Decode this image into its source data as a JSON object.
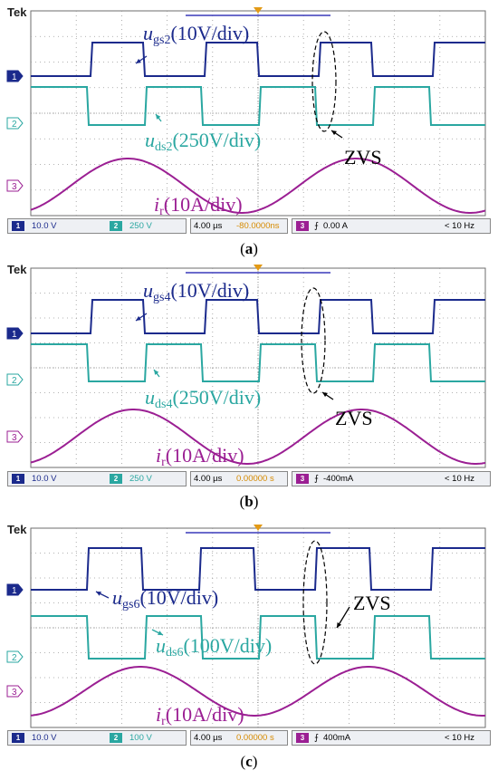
{
  "brand": "Tek",
  "channel_markers": [
    "1",
    "2",
    "3"
  ],
  "zvs_label": "ZVS",
  "colors": {
    "ch1": "#1b2a8c",
    "ch2": "#2aa7a1",
    "ch3": "#9b1f93",
    "grid": "#9a9a9a"
  },
  "panels": [
    {
      "caption_letter": "a",
      "ugs": {
        "var": "u",
        "sub": "gs2",
        "scale": "(10V/div)"
      },
      "uds": {
        "var": "u",
        "sub": "ds2",
        "scale": "(250V/div)"
      },
      "ir": {
        "var": "i",
        "sub": "r",
        "scale": "(10A/div)"
      },
      "status": {
        "ch1": "10.0 V",
        "ch2": "250 V",
        "time": "4.00 µs",
        "offset": "-80.0000ns",
        "trig": "0.00 A",
        "freq": "< 10 Hz"
      }
    },
    {
      "caption_letter": "b",
      "ugs": {
        "var": "u",
        "sub": "gs4",
        "scale": "(10V/div)"
      },
      "uds": {
        "var": "u",
        "sub": "ds4",
        "scale": "(250V/div)"
      },
      "ir": {
        "var": "i",
        "sub": "r",
        "scale": "(10A/div)"
      },
      "status": {
        "ch1": "10.0 V",
        "ch2": "250 V",
        "time": "4.00 µs",
        "offset": "0.00000 s",
        "trig": "-400mA",
        "freq": "< 10 Hz"
      }
    },
    {
      "caption_letter": "c",
      "ugs": {
        "var": "u",
        "sub": "gs6",
        "scale": "(10V/div)"
      },
      "uds": {
        "var": "u",
        "sub": "ds6",
        "scale": "(100V/div)"
      },
      "ir": {
        "var": "i",
        "sub": "r",
        "scale": "(10A/div)"
      },
      "status": {
        "ch1": "10.0 V",
        "ch2": "100 V",
        "time": "4.00 µs",
        "offset": "0.00000 s",
        "trig": "400mA",
        "freq": "< 10 Hz"
      }
    }
  ]
}
